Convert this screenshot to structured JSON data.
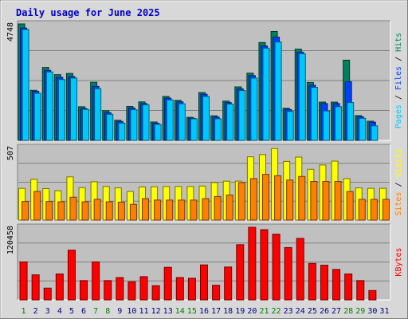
{
  "chart_data": {
    "type": "bar",
    "title": "Daily usage for June 2025",
    "x": [
      1,
      2,
      3,
      4,
      5,
      6,
      7,
      8,
      9,
      10,
      11,
      12,
      13,
      14,
      15,
      16,
      17,
      18,
      19,
      20,
      21,
      22,
      23,
      24,
      25,
      26,
      27,
      28,
      29,
      30,
      31
    ],
    "weekend_days": [
      1,
      7,
      8,
      14,
      15,
      21,
      22,
      28,
      29
    ],
    "colors": {
      "title": "#0000cc",
      "hits": "#00805c",
      "files": "#0040ff",
      "pages": "#00c8ff",
      "visits": "#ffff00",
      "sites": "#ff8000",
      "kbytes": "#ff0000",
      "weekend_label": "#008000",
      "weekday_label": "#000080",
      "plot_bg": "#c0c0c0",
      "frame_bg": "#d8d8d8"
    },
    "panels": [
      {
        "id": "hits_files_pages",
        "ymax_label": "4748",
        "ylim": [
          0,
          4748
        ],
        "right_label": [
          "Pages",
          "Files",
          "Hits"
        ],
        "series": [
          {
            "name": "Hits",
            "values": [
              4748,
              2040,
              2970,
              2680,
              2730,
              1370,
              2370,
              1210,
              820,
              1380,
              1570,
              750,
              1790,
              1630,
              940,
              1950,
              1000,
              1600,
              2180,
              2740,
              3990,
              4440,
              1310,
              3720,
              2360,
              1560,
              1560,
              3270,
              1010,
              780,
              0
            ]
          },
          {
            "name": "Files",
            "values": [
              4580,
              2000,
              2850,
              2570,
              2600,
              1300,
              2200,
              1130,
              770,
              1320,
              1500,
              700,
              1720,
              1570,
              900,
              1880,
              950,
              1540,
              2100,
              2640,
              3850,
              4210,
              1260,
              3600,
              2250,
              1500,
              1500,
              2390,
              960,
              740,
              0
            ]
          },
          {
            "name": "Pages",
            "values": [
              4520,
              1920,
              2790,
              2480,
              2540,
              1260,
              2110,
              1060,
              700,
              1250,
              1450,
              650,
              1650,
              1490,
              880,
              1790,
              880,
              1480,
              2030,
              2540,
              3760,
              4010,
              1180,
              3530,
              2160,
              1200,
              1370,
              1540,
              900,
              590,
              0
            ]
          }
        ]
      },
      {
        "id": "visits_sites",
        "ymax_label": "507",
        "ylim": [
          0,
          507
        ],
        "right_label": [
          "Sites",
          "Visits"
        ],
        "series": [
          {
            "name": "Visits",
            "values": [
              222,
              285,
              220,
              205,
              302,
              227,
              268,
              235,
              225,
              200,
              232,
              233,
              235,
              235,
              235,
              238,
              262,
              272,
              272,
              442,
              458,
              500,
              410,
              440,
              355,
              385,
              412,
              290,
              225,
              222,
              222
            ]
          },
          {
            "name": "Sites",
            "values": [
              130,
              200,
              130,
              128,
              160,
              128,
              145,
              128,
              125,
              110,
              150,
              140,
              140,
              140,
              140,
              150,
              165,
              175,
              262,
              290,
              320,
              310,
              280,
              305,
              270,
              270,
              270,
              200,
              145,
              145,
              145
            ]
          }
        ]
      },
      {
        "id": "kbytes",
        "ymax_label": "120458",
        "ylim": [
          0,
          120458
        ],
        "right_label": [
          "KBytes"
        ],
        "series": [
          {
            "name": "KBytes",
            "values": [
              63000,
              41500,
              19500,
              43000,
              82500,
              32000,
              63000,
              32000,
              37000,
              30000,
              38500,
              23500,
              54000,
              37000,
              35800,
              58000,
              24200,
              54500,
              91500,
              120458,
              116500,
              109000,
              86800,
              102000,
              60500,
              57500,
              50500,
              43000,
              32000,
              15500,
              0
            ]
          }
        ]
      }
    ]
  }
}
